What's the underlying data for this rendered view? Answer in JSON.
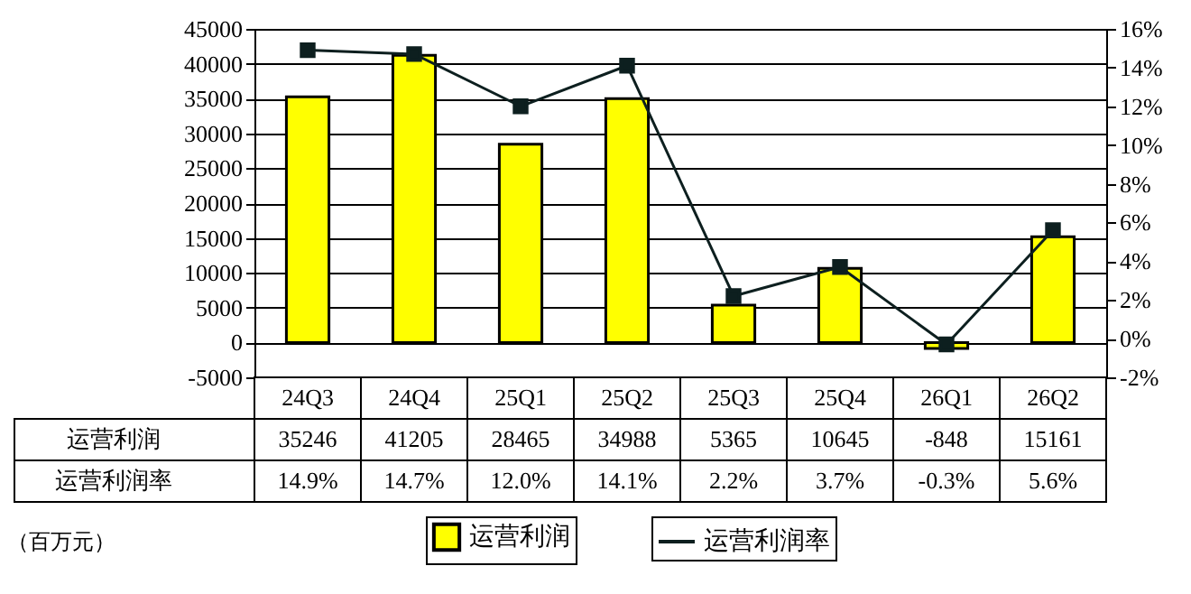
{
  "chart_data": {
    "type": "bar",
    "categories": [
      "24Q3",
      "24Q4",
      "25Q1",
      "25Q2",
      "25Q3",
      "25Q4",
      "26Q1",
      "26Q2"
    ],
    "series": [
      {
        "name": "运营利润",
        "type": "bar",
        "color": "#ffff00",
        "values": [
          35246,
          41205,
          28465,
          34988,
          5365,
          10645,
          -848,
          15161
        ],
        "value_labels": [
          "35246",
          "41205",
          "28465",
          "34988",
          "5365",
          "10645",
          "-848",
          "15161"
        ]
      },
      {
        "name": "运营利润率",
        "type": "line",
        "axis": "y2",
        "color": "#0d1f1f",
        "values": [
          14.9,
          14.7,
          12.0,
          14.1,
          2.2,
          3.7,
          -0.3,
          5.6
        ],
        "value_labels": [
          "14.9%",
          "14.7%",
          "12.0%",
          "14.1%",
          "2.2%",
          "3.7%",
          "-0.3%",
          "5.6%"
        ]
      }
    ],
    "ylim": [
      -5000,
      45000
    ],
    "yticks": [
      -5000,
      0,
      5000,
      10000,
      15000,
      20000,
      25000,
      30000,
      35000,
      40000,
      45000
    ],
    "y2lim": [
      -2,
      16
    ],
    "y2ticks": [
      {
        "value": -2,
        "label": "-2%"
      },
      {
        "value": 0,
        "label": "0%"
      },
      {
        "value": 2,
        "label": "2%"
      },
      {
        "value": 4,
        "label": "4%"
      },
      {
        "value": 6,
        "label": "6%"
      },
      {
        "value": 8,
        "label": "8%"
      },
      {
        "value": 10,
        "label": "10%"
      },
      {
        "value": 12,
        "label": "12%"
      },
      {
        "value": 14,
        "label": "14%"
      },
      {
        "value": 16,
        "label": "16%"
      }
    ],
    "grid": "y",
    "marker": "square",
    "legend": "bottom",
    "annotations": [
      "（百万元）"
    ]
  }
}
